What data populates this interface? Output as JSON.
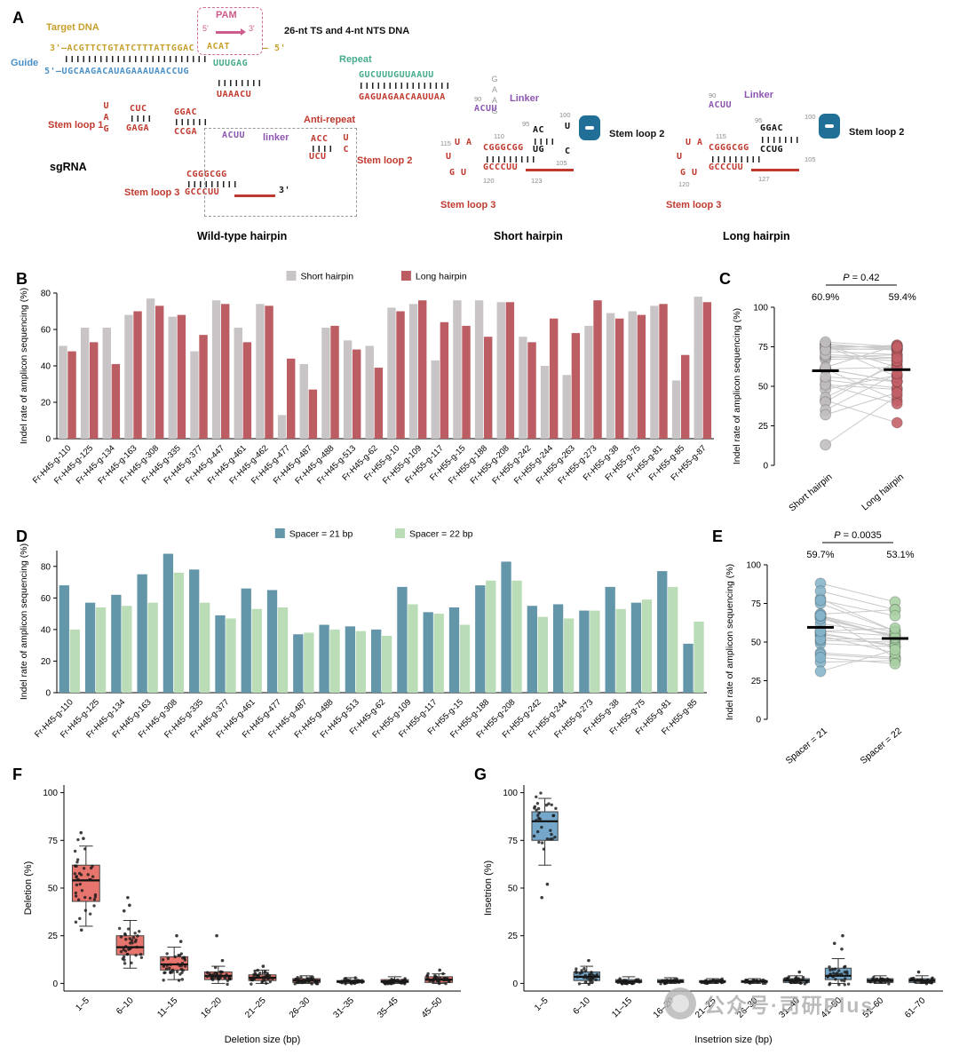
{
  "figure": {
    "panel_labels": {
      "A": "A",
      "B": "B",
      "C": "C",
      "D": "D",
      "E": "E",
      "F": "F",
      "G": "G"
    }
  },
  "watermark": {
    "text": "公众号·司研Plus"
  },
  "panelA": {
    "wt": {
      "targetDnaLabel": "Target DNA",
      "pamLabel": "PAM",
      "pam5": "5'",
      "pam3": "3'",
      "tsNts": "26-nt TS and 4-nt NTS DNA",
      "targetSeq": "3'–ACGTTCTGTATCTTTATTGGAC",
      "pamSeq": "ACAT",
      "target5": "– 5'",
      "guideLabel": "Guide",
      "guideSeq": "5'–UGCAAGACAUAGAAAUAACCUG",
      "repeatLabel": "Repeat",
      "repeatSeq1": "UUUGAG",
      "repeatSeq2": "GUCUUUGUUAAUU",
      "grayCol": "GAAG",
      "antiSeq1": "UAAACU",
      "antiSeq2": "GAGUAGAACAAUUAA",
      "antiLabel": "Anti-repeat",
      "sl1Label": "Stem loop 1",
      "sl1Side": "UAG",
      "sl1Top": "CUC",
      "sl1Top2": "GGAC",
      "sl1Bot": "GAGA",
      "sl1Bot2": "CCGA",
      "sgrnaLabel": "sgRNA",
      "linkerLabel": "linker",
      "linkerSeq": "ACUU",
      "sl2Label": "Stem loop 2",
      "sl2Top": "ACC",
      "sl2Bot": "UCU",
      "sl2Side": "UC",
      "sl3Label": "Stem loop 3",
      "sl3Top": "CGGGCGG",
      "sl3Bot": "GCCCUU",
      "sl3End": "3'",
      "caption": "Wild-type hairpin"
    },
    "short": {
      "n90": "90",
      "n95": "95",
      "n100": "100",
      "n105": "105",
      "n110": "110",
      "n115": "115",
      "n120": "120",
      "n123": "123",
      "linkerLabel": "Linker",
      "linkerSeq": "ACUU",
      "b1": "AC",
      "b2": "UG",
      "u": "U",
      "c": "C",
      "sl2Label": "Stem loop 2",
      "r1": "U A",
      "r2": "U",
      "r3": "G U",
      "sl3Top": "CGGGCGG",
      "sl3Bot": "GCCCUU",
      "sl3Label": "Stem loop 3",
      "caption": "Short hairpin"
    },
    "long": {
      "n90": "90",
      "n95": "95",
      "n100": "100",
      "n105": "105",
      "n115": "115",
      "n120": "120",
      "n127": "127",
      "linkerLabel": "Linker",
      "linkerSeq": "ACUU",
      "b1": "GGAC",
      "b2": "CCUG",
      "sl2Label": "Stem loop 2",
      "r1": "U A",
      "r2": "U",
      "r3": "G U",
      "sl3Top": "CGGGCGG",
      "sl3Bot": "GCCCUU",
      "sl3Label": "Stem loop 3",
      "caption": "Long hairpin"
    }
  },
  "chart_data": [
    {
      "id": "B",
      "type": "bar",
      "ylabel": "Indel rate of amplicon sequencing (%)",
      "ylim": [
        0,
        80
      ],
      "yticks": [
        0,
        20,
        40,
        60,
        80
      ],
      "legend": [
        "Short hairpin",
        "Long hairpin"
      ],
      "colors": [
        "#c9c5c6",
        "#bb5d63"
      ],
      "categories": [
        "Fr-H45-g-110",
        "Fr-H45-g-125",
        "Fr-H45-g-134",
        "Fr-H45-g-163",
        "Fr-H45-g-308",
        "Fr-H45-g-335",
        "Fr-H45-g-377",
        "Fr-H45-g-447",
        "Fr-H45-g-461",
        "Fr-H45-g-462",
        "Fr-H45-g-477",
        "Fr-H45-g-487",
        "Fr-H45-g-488",
        "Fr-H45-g-513",
        "Fr-H45-g-62",
        "Fr-H55-g-10",
        "Fr-H55-g-109",
        "Fr-H55-g-117",
        "Fr-H55-g-15",
        "Fr-H55-g-188",
        "Fr-H55-g-208",
        "Fr-H55-g-242",
        "Fr-H55-g-244",
        "Fr-H55-g-263",
        "Fr-H55-g-273",
        "Fr-H55-g-38",
        "Fr-H55-g-75",
        "Fr-H55-g-81",
        "Fr-H55-g-85",
        "Fr-H55-g-87"
      ],
      "series": [
        {
          "name": "Short hairpin",
          "values": [
            51,
            61,
            61,
            68,
            77,
            67,
            48,
            76,
            61,
            74,
            13,
            41,
            61,
            54,
            51,
            72,
            74,
            43,
            76,
            76,
            75,
            56,
            40,
            35,
            62,
            69,
            70,
            73,
            32,
            78
          ]
        },
        {
          "name": "Long hairpin",
          "values": [
            48,
            53,
            41,
            70,
            73,
            68,
            57,
            74,
            53,
            73,
            44,
            27,
            62,
            49,
            39,
            70,
            76,
            64,
            62,
            56,
            75,
            53,
            66,
            58,
            76,
            66,
            68,
            74,
            46,
            75
          ]
        }
      ]
    },
    {
      "id": "C",
      "type": "paired",
      "ylabel": "Indel rate of amplicon sequencing (%)",
      "ylim": [
        0,
        100
      ],
      "yticks": [
        0,
        25,
        50,
        75,
        100
      ],
      "p_label": "P = 0.42",
      "group_means": [
        "60.9%",
        "59.4%"
      ],
      "groups": [
        "Short hairpin",
        "Long hairpin"
      ],
      "colors": [
        "#c0bdbe",
        "#c26067"
      ],
      "pairs": [
        [
          51,
          48
        ],
        [
          61,
          53
        ],
        [
          61,
          41
        ],
        [
          68,
          70
        ],
        [
          77,
          73
        ],
        [
          67,
          68
        ],
        [
          48,
          57
        ],
        [
          76,
          74
        ],
        [
          61,
          53
        ],
        [
          74,
          73
        ],
        [
          13,
          44
        ],
        [
          41,
          27
        ],
        [
          61,
          62
        ],
        [
          54,
          49
        ],
        [
          51,
          39
        ],
        [
          72,
          70
        ],
        [
          74,
          76
        ],
        [
          43,
          64
        ],
        [
          76,
          62
        ],
        [
          76,
          56
        ],
        [
          75,
          75
        ],
        [
          56,
          53
        ],
        [
          40,
          66
        ],
        [
          35,
          58
        ],
        [
          62,
          76
        ],
        [
          69,
          66
        ],
        [
          70,
          68
        ],
        [
          73,
          74
        ],
        [
          32,
          46
        ],
        [
          78,
          75
        ]
      ]
    },
    {
      "id": "D",
      "type": "bar",
      "ylabel": "Indel rate of amplicon sequencing (%)",
      "ylim": [
        0,
        90
      ],
      "yticks": [
        0,
        20,
        40,
        60,
        80
      ],
      "legend": [
        "Spacer = 21 bp",
        "Spacer = 22 bp"
      ],
      "colors": [
        "#6496aa",
        "#badcb6"
      ],
      "categories": [
        "Fr-H45-g-110",
        "Fr-H45-g-125",
        "Fr-H45-g-134",
        "Fr-H45-g-163",
        "Fr-H45-g-308",
        "Fr-H45-g-335",
        "Fr-H45-g-377",
        "Fr-H45-g-461",
        "Fr-H45-g-477",
        "Fr-H45-g-487",
        "Fr-H45-g-488",
        "Fr-H45-g-513",
        "Fr-H45-g-62",
        "Fr-H55-g-109",
        "Fr-H55-g-117",
        "Fr-H55-g-15",
        "Fr-H55-g-188",
        "Fr-H55-g-208",
        "Fr-H55-g-242",
        "Fr-H55-g-244",
        "Fr-H55-g-273",
        "Fr-H55-g-38",
        "Fr-H55-g-75",
        "Fr-H55-g-81",
        "Fr-H55-g-85"
      ],
      "series": [
        {
          "name": "Spacer = 21 bp",
          "values": [
            68,
            57,
            62,
            75,
            88,
            78,
            49,
            66,
            65,
            37,
            43,
            42,
            40,
            67,
            51,
            54,
            68,
            83,
            55,
            56,
            52,
            67,
            57,
            77,
            31
          ]
        },
        {
          "name": "Spacer = 22 bp",
          "values": [
            40,
            54,
            55,
            57,
            76,
            57,
            47,
            53,
            54,
            38,
            40,
            39,
            36,
            56,
            50,
            43,
            71,
            71,
            48,
            47,
            52,
            53,
            59,
            67,
            45
          ]
        }
      ]
    },
    {
      "id": "E",
      "type": "paired",
      "ylabel": "Indel rate of amplicon sequencing (%)",
      "ylim": [
        0,
        100
      ],
      "yticks": [
        0,
        25,
        50,
        75,
        100
      ],
      "p_label": "P = 0.0035",
      "group_means": [
        "59.7%",
        "53.1%"
      ],
      "groups": [
        "Spacer = 21",
        "Spacer = 22"
      ],
      "colors": [
        "#85b4ca",
        "#a9cfa4"
      ],
      "pairs": [
        [
          68,
          40
        ],
        [
          57,
          54
        ],
        [
          62,
          55
        ],
        [
          75,
          57
        ],
        [
          88,
          76
        ],
        [
          78,
          57
        ],
        [
          49,
          47
        ],
        [
          66,
          53
        ],
        [
          65,
          54
        ],
        [
          37,
          38
        ],
        [
          43,
          40
        ],
        [
          42,
          39
        ],
        [
          40,
          36
        ],
        [
          67,
          56
        ],
        [
          51,
          50
        ],
        [
          54,
          43
        ],
        [
          68,
          71
        ],
        [
          83,
          71
        ],
        [
          55,
          48
        ],
        [
          56,
          47
        ],
        [
          52,
          52
        ],
        [
          67,
          53
        ],
        [
          57,
          59
        ],
        [
          77,
          67
        ],
        [
          31,
          45
        ]
      ]
    },
    {
      "id": "F",
      "type": "box",
      "ylabel": "Deletion (%)",
      "xlabel": "Deletion size (bp)",
      "ylim": [
        -4,
        104
      ],
      "yticks": [
        0,
        25,
        50,
        75,
        100
      ],
      "color": "#e8756d",
      "points_per_box": 36,
      "categories": [
        "1–5",
        "6–10",
        "11–15",
        "16–20",
        "21–25",
        "26–30",
        "31–35",
        "35–45",
        "45–50"
      ],
      "boxes": [
        [
          30,
          43,
          54,
          62,
          72
        ],
        [
          8,
          15,
          19,
          25,
          33
        ],
        [
          2,
          7,
          10,
          14,
          19
        ],
        [
          0,
          2,
          4,
          6,
          9
        ],
        [
          0,
          1.5,
          3,
          4.5,
          7
        ],
        [
          0,
          0.5,
          1.5,
          2.5,
          4
        ],
        [
          0,
          0.5,
          1,
          1.5,
          3
        ],
        [
          0,
          0.5,
          1,
          2,
          3.5
        ],
        [
          0,
          0.5,
          2,
          3.5,
          5
        ]
      ],
      "outliers": [
        [
          76,
          79,
          28
        ],
        [
          38,
          41,
          45
        ],
        [
          22,
          25
        ],
        [
          12,
          25
        ],
        [
          9
        ],
        [],
        [],
        [],
        [
          7
        ]
      ]
    },
    {
      "id": "G",
      "type": "box",
      "ylabel": "Insetrion (%)",
      "xlabel": "Insetrion size (bp)",
      "ylim": [
        -4,
        104
      ],
      "yticks": [
        0,
        25,
        50,
        75,
        100
      ],
      "color": "#74a7c9",
      "points_per_box": 30,
      "categories": [
        "1–5",
        "6–10",
        "11–15",
        "16–20",
        "21–25",
        "26–30",
        "31–40",
        "41–50",
        "51–60",
        "61–70"
      ],
      "boxes": [
        [
          62,
          75,
          85,
          90,
          97
        ],
        [
          0,
          1.5,
          3.5,
          6,
          9
        ],
        [
          0,
          0.5,
          1,
          2,
          3.5
        ],
        [
          0,
          0.5,
          1,
          2,
          3
        ],
        [
          0,
          0.5,
          1,
          1.5,
          2.5
        ],
        [
          0,
          0.5,
          1,
          1.5,
          2.5
        ],
        [
          0,
          0.5,
          1.5,
          2.5,
          4
        ],
        [
          0,
          2,
          4,
          8,
          13
        ],
        [
          0,
          0.5,
          1.5,
          2.5,
          4
        ],
        [
          0,
          0.5,
          1.5,
          2.5,
          4
        ]
      ],
      "outliers": [
        [
          52,
          45
        ],
        [
          12
        ],
        [],
        [],
        [],
        [],
        [
          6
        ],
        [
          18,
          21,
          25
        ],
        [],
        [
          6
        ]
      ]
    }
  ]
}
